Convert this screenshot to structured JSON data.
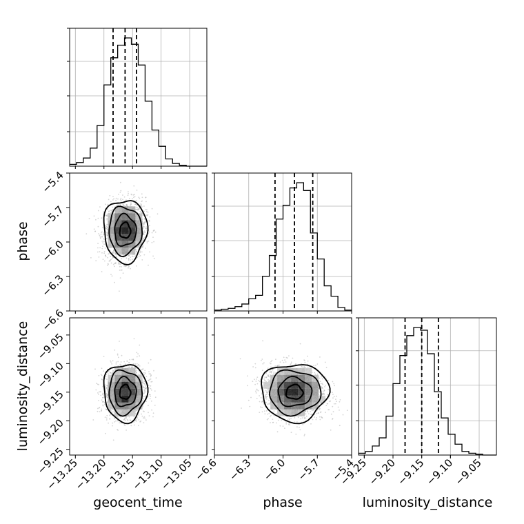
{
  "chart_data": {
    "type": "corner",
    "title": "",
    "parameters": [
      "geocent_time",
      "phase",
      "luminosity_distance"
    ],
    "ranges": {
      "geocent_time": [
        -13.26,
        -13.02
      ],
      "phase": [
        -6.6,
        -5.4
      ],
      "luminosity_distance": [
        -9.26,
        -9.02
      ]
    },
    "ticks": {
      "geocent_time": [
        {
          "value": -13.25,
          "label": "−13.25"
        },
        {
          "value": -13.2,
          "label": "−13.20"
        },
        {
          "value": -13.15,
          "label": "−13.15"
        },
        {
          "value": -13.1,
          "label": "−13.10"
        },
        {
          "value": -13.05,
          "label": "−13.05"
        }
      ],
      "phase_x": [
        {
          "value": -6.6,
          "label": "−6.6"
        },
        {
          "value": -6.3,
          "label": "−6.3"
        },
        {
          "value": -6.0,
          "label": "−6.0"
        },
        {
          "value": -5.7,
          "label": "−5.7"
        },
        {
          "value": -5.4,
          "label": "−5.4"
        }
      ],
      "phase_y": [
        {
          "value": -5.4,
          "label": "−5.4"
        },
        {
          "value": -5.7,
          "label": "−5.7"
        },
        {
          "value": -6.0,
          "label": "−6.0"
        },
        {
          "value": -6.3,
          "label": "−6.3"
        },
        {
          "value": -6.6,
          "label": "−6.6"
        }
      ],
      "luminosity_distance": [
        {
          "value": -9.25,
          "label": "−9.25"
        },
        {
          "value": -9.2,
          "label": "−9.20"
        },
        {
          "value": -9.15,
          "label": "−9.15"
        },
        {
          "value": -9.1,
          "label": "−9.10"
        },
        {
          "value": -9.05,
          "label": "−9.05"
        }
      ]
    },
    "quantiles": {
      "geocent_time": [
        -13.184,
        -13.163,
        -13.143
      ],
      "phase": [
        -6.07,
        -5.9,
        -5.74
      ],
      "luminosity_distance": [
        -9.179,
        -9.15,
        -9.121
      ]
    },
    "histograms": {
      "geocent_time": {
        "edges_start": -13.26,
        "bin_width": 0.012,
        "counts": [
          2,
          4,
          9,
          20,
          45,
          90,
          120,
          134,
          142,
          135,
          112,
          72,
          40,
          22,
          8,
          3,
          1,
          0,
          0,
          0
        ]
      },
      "phase": {
        "edges_start": -6.6,
        "bin_width": 0.06,
        "counts": [
          1,
          2,
          3,
          5,
          8,
          14,
          18,
          40,
          64,
          106,
          122,
          142,
          148,
          139,
          90,
          60,
          29,
          17,
          4,
          1
        ]
      },
      "luminosity_distance": {
        "edges_start": -9.26,
        "bin_width": 0.012,
        "counts": [
          2,
          4,
          10,
          19,
          43,
          79,
          110,
          132,
          141,
          138,
          112,
          70,
          41,
          23,
          12,
          4,
          2,
          1,
          0,
          0
        ]
      }
    },
    "grid": true,
    "contour_levels": [
      "inner",
      "middle",
      "outer"
    ],
    "point_color": "#b0b0b0",
    "line_color": "#000000"
  }
}
